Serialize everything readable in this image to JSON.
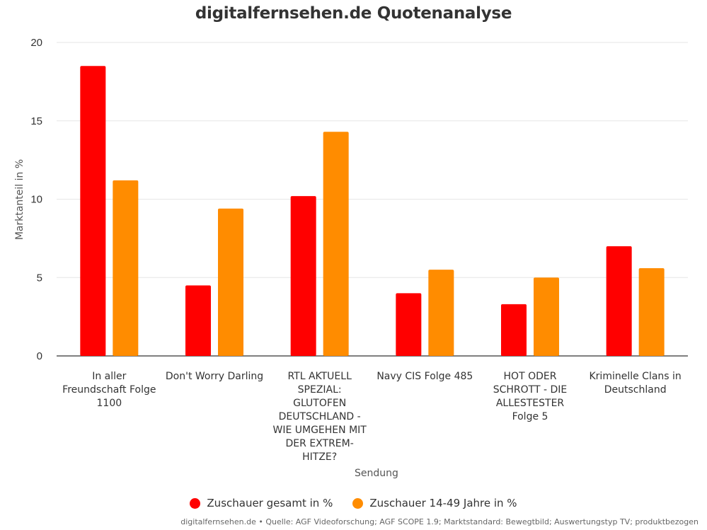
{
  "title": "digitalfernsehen.de Quotenanalyse",
  "footer": "digitalfernsehen.de • Quelle: AGF Videoforschung; AGF SCOPE 1.9; Marktstandard: Bewegtbild; Auswertungstyp TV; produktbezogen",
  "chart_data": {
    "type": "bar",
    "title": "digitalfernsehen.de Quotenanalyse",
    "xlabel": "Sendung",
    "ylabel": "Marktanteil in %",
    "ylim": [
      0,
      20
    ],
    "yticks": [
      "0",
      "5",
      "10",
      "15",
      "20"
    ],
    "grid": true,
    "legend_position": "bottom",
    "categories": [
      [
        "In aller",
        "Freundschaft Folge",
        "1100"
      ],
      [
        "Don't Worry Darling"
      ],
      [
        "RTL AKTUELL",
        "SPEZIAL:",
        "GLUTOFEN",
        "DEUTSCHLAND -",
        "WIE UMGEHEN MIT",
        "DER EXTREM-",
        "HITZE?"
      ],
      [
        "Navy CIS Folge 485"
      ],
      [
        "HOT ODER",
        "SCHROTT - DIE",
        "ALLESTESTER",
        "Folge 5"
      ],
      [
        "Kriminelle Clans in",
        "Deutschland"
      ]
    ],
    "series": [
      {
        "name": "Zuschauer gesamt in %",
        "color": "#ff0000",
        "values": [
          18.5,
          4.5,
          10.2,
          4.0,
          3.3,
          7.0
        ]
      },
      {
        "name": "Zuschauer 14-49 Jahre in %",
        "color": "#ff8c00",
        "values": [
          11.2,
          9.4,
          14.3,
          5.5,
          5.0,
          5.6
        ]
      }
    ]
  }
}
